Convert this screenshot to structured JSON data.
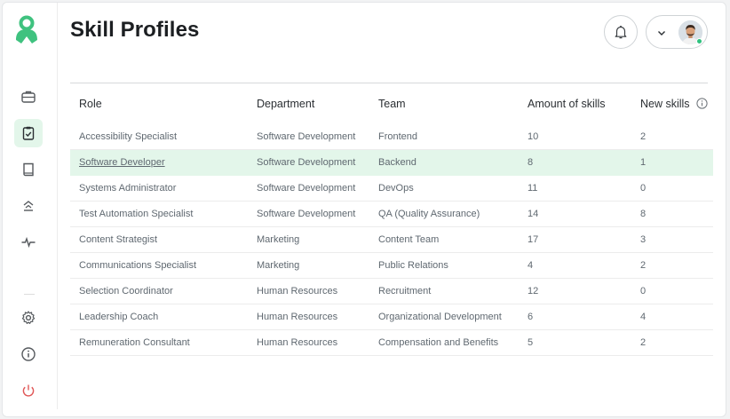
{
  "header": {
    "title": "Skill Profiles"
  },
  "sidebar": {
    "logo": "user-badge-logo",
    "items": [
      {
        "name": "briefcase-icon"
      },
      {
        "name": "clipboard-check-icon",
        "active": true
      },
      {
        "name": "book-icon"
      },
      {
        "name": "hierarchy-icon"
      },
      {
        "name": "pulse-icon"
      },
      {
        "name": "gear-icon"
      },
      {
        "name": "info-icon"
      },
      {
        "name": "power-icon"
      }
    ]
  },
  "table": {
    "columns": [
      "Role",
      "Department",
      "Team",
      "Amount of skills",
      "New skills"
    ],
    "rows": [
      {
        "role": "Accessibility Specialist",
        "department": "Software Development",
        "team": "Frontend",
        "amount": "10",
        "new": "2"
      },
      {
        "role": "Software Developer",
        "department": "Software Development",
        "team": "Backend",
        "amount": "8",
        "new": "1"
      },
      {
        "role": "Systems Administrator",
        "department": "Software Development",
        "team": "DevOps",
        "amount": "11",
        "new": "0"
      },
      {
        "role": "Test Automation Specialist",
        "department": "Software Development",
        "team": "QA (Quality Assurance)",
        "amount": "14",
        "new": "8"
      },
      {
        "role": "Content Strategist",
        "department": "Marketing",
        "team": "Content Team",
        "amount": "17",
        "new": "3"
      },
      {
        "role": "Communications Specialist",
        "department": "Marketing",
        "team": "Public Relations",
        "amount": "4",
        "new": "2"
      },
      {
        "role": "Selection Coordinator",
        "department": "Human Resources",
        "team": "Recruitment",
        "amount": "12",
        "new": "0"
      },
      {
        "role": "Leadership Coach",
        "department": "Human Resources",
        "team": "Organizational Development",
        "amount": "6",
        "new": "4"
      },
      {
        "role": "Remuneration Consultant",
        "department": "Human Resources",
        "team": "Compensation and Benefits",
        "amount": "5",
        "new": "2"
      }
    ]
  },
  "colors": {
    "accent": "#2ec27e",
    "highlight": "#e3f6ea",
    "power": "#e05757"
  }
}
